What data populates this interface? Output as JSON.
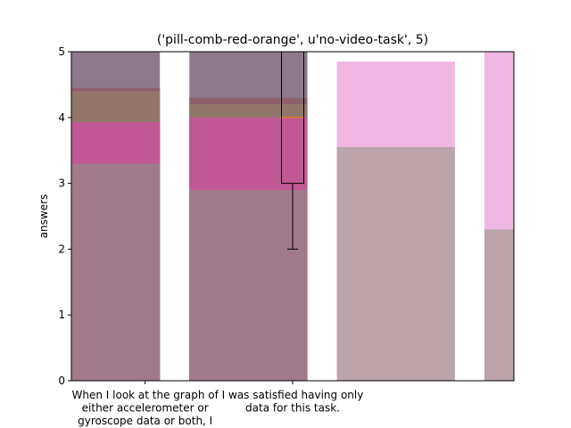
{
  "chart_data": {
    "type": "bar",
    "title": "('pill-comb-red-orange', u'no-video-task', 5)",
    "xlabel": "",
    "ylabel": "answers",
    "ylim": [
      0,
      5
    ],
    "yticks": [
      "0",
      "1",
      "2",
      "3",
      "4",
      "5"
    ],
    "categories": [
      "When I look at the graph of either accelerometer or gyroscope data or both, I",
      "I was satisfied having only data for this task."
    ],
    "category_label_lines": [
      [
        "When I look at the graph of",
        "either accelerometer or",
        "gyroscope data or both, I"
      ],
      [
        "I was satisfied having only",
        "data for this task."
      ]
    ],
    "grid": false,
    "bar_layers": [
      {
        "x_center": -0.3,
        "values": [
          5.0,
          5.0
        ],
        "color": "#8c7a8c"
      },
      {
        "x_center": -0.3,
        "values": [
          4.45,
          4.3
        ],
        "color": "#8f5f6e"
      },
      {
        "x_center": -0.3,
        "values": [
          4.4,
          4.2
        ],
        "color": "#93766b"
      },
      {
        "x_center": -0.3,
        "values": [
          3.93,
          4.0
        ],
        "color": "#c15a94"
      },
      {
        "x_center": -0.3,
        "values": [
          3.3,
          2.9
        ],
        "color": "#a07a8a"
      },
      {
        "x_center": 1.7,
        "values": [
          4.85,
          5.0
        ],
        "color": "#f0b8e0"
      },
      {
        "x_center": 1.7,
        "values": [
          3.55,
          2.3
        ],
        "color": "#bca4ab"
      }
    ],
    "boxplot": {
      "category": "I was satisfied having only data for this task.",
      "whisker_low": 2,
      "q1": 3,
      "median": 4,
      "q3": 5,
      "whisker_high": 5,
      "median_color": "#ff7f0e"
    }
  }
}
